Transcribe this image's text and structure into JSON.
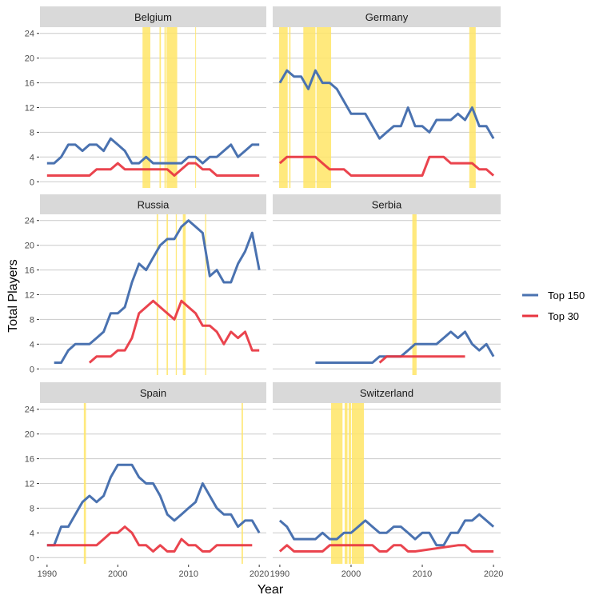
{
  "chart_data": {
    "type": "line",
    "xlabel": "Year",
    "ylabel": "Total Players",
    "xlim": [
      1989,
      2021
    ],
    "ylim": [
      -1,
      25
    ],
    "x_ticks": [
      1990,
      2000,
      2010,
      2020
    ],
    "y_ticks": [
      0,
      4,
      8,
      12,
      16,
      20,
      24
    ],
    "grid": true,
    "legend": {
      "placement": "right",
      "entries": [
        {
          "name": "Top 150",
          "color": "#4a72b0"
        },
        {
          "name": "Top 30",
          "color": "#e8343f"
        }
      ]
    },
    "highlight_color": "#ffe566",
    "panels": [
      {
        "title": "Belgium",
        "series": [
          {
            "name": "Top 150",
            "x": [
              1990,
              1991,
              1992,
              1993,
              1994,
              1995,
              1996,
              1997,
              1998,
              1999,
              2000,
              2001,
              2002,
              2003,
              2004,
              2005,
              2006,
              2007,
              2008,
              2009,
              2010,
              2011,
              2012,
              2013,
              2014,
              2015,
              2016,
              2017,
              2018,
              2019,
              2020
            ],
            "values": [
              3,
              3,
              4,
              6,
              6,
              5,
              6,
              6,
              5,
              7,
              6,
              5,
              3,
              3,
              4,
              3,
              3,
              3,
              3,
              3,
              4,
              4,
              3,
              4,
              4,
              5,
              6,
              4,
              5,
              6,
              6
            ]
          },
          {
            "name": "Top 30",
            "x": [
              1990,
              1991,
              1992,
              1993,
              1994,
              1995,
              1996,
              1997,
              1998,
              1999,
              2000,
              2001,
              2002,
              2003,
              2004,
              2005,
              2006,
              2007,
              2008,
              2009,
              2010,
              2011,
              2012,
              2013,
              2014,
              2015,
              2016,
              2017,
              2018,
              2019,
              2020
            ],
            "values": [
              1,
              1,
              1,
              1,
              1,
              1,
              1,
              2,
              2,
              2,
              3,
              2,
              2,
              2,
              2,
              2,
              2,
              2,
              1,
              2,
              3,
              3,
              2,
              2,
              1,
              1,
              1,
              1,
              1,
              1,
              1
            ]
          }
        ],
        "highlights": [
          [
            2003.5,
            2004.6
          ],
          [
            2005.9,
            2006.1
          ],
          [
            2006.6,
            2006.8
          ],
          [
            2006.9,
            2008.4
          ],
          [
            2010.95,
            2011.05
          ]
        ]
      },
      {
        "title": "Germany",
        "series": [
          {
            "name": "Top 150",
            "x": [
              1990,
              1991,
              1992,
              1993,
              1994,
              1995,
              1996,
              1997,
              1998,
              1999,
              2000,
              2001,
              2002,
              2003,
              2004,
              2005,
              2006,
              2007,
              2008,
              2009,
              2010,
              2011,
              2012,
              2013,
              2014,
              2015,
              2016,
              2017,
              2018,
              2019,
              2020
            ],
            "values": [
              16,
              18,
              17,
              17,
              15,
              18,
              16,
              16,
              15,
              13,
              11,
              11,
              11,
              9,
              7,
              8,
              9,
              9,
              12,
              9,
              9,
              8,
              10,
              10,
              10,
              11,
              10,
              12,
              9,
              9,
              7
            ]
          },
          {
            "name": "Top 30",
            "x": [
              1990,
              1991,
              1992,
              1993,
              1994,
              1995,
              1996,
              1997,
              1998,
              1999,
              2000,
              2001,
              2002,
              2003,
              2004,
              2005,
              2006,
              2007,
              2008,
              2009,
              2010,
              2011,
              2012,
              2013,
              2014,
              2015,
              2016,
              2017,
              2018,
              2019,
              2020
            ],
            "values": [
              3,
              4,
              4,
              4,
              4,
              4,
              3,
              2,
              2,
              2,
              1,
              1,
              1,
              1,
              1,
              1,
              1,
              1,
              1,
              1,
              1,
              4,
              4,
              4,
              3,
              3,
              3,
              3,
              2,
              2,
              1
            ]
          }
        ],
        "highlights": [
          [
            1989.9,
            1991.1
          ],
          [
            1991.3,
            1991.5
          ],
          [
            1993.3,
            1995.0
          ],
          [
            1995.15,
            1997.2
          ],
          [
            2016.6,
            2017.5
          ]
        ]
      },
      {
        "title": "Russia",
        "series": [
          {
            "name": "Top 150",
            "x": [
              1991,
              1992,
              1993,
              1994,
              1995,
              1996,
              1997,
              1998,
              1999,
              2000,
              2001,
              2002,
              2003,
              2004,
              2005,
              2006,
              2007,
              2008,
              2009,
              2010,
              2011,
              2012,
              2013,
              2014,
              2015,
              2016,
              2017,
              2018,
              2019,
              2020
            ],
            "values": [
              1,
              1,
              3,
              4,
              4,
              4,
              5,
              6,
              9,
              9,
              10,
              14,
              17,
              16,
              18,
              20,
              21,
              21,
              23,
              24,
              23,
              22,
              15,
              16,
              14,
              14,
              17,
              19,
              22,
              16
            ]
          },
          {
            "name": "Top 30",
            "x": [
              1996,
              1997,
              1998,
              1999,
              2000,
              2001,
              2002,
              2003,
              2004,
              2005,
              2006,
              2007,
              2008,
              2009,
              2010,
              2011,
              2012,
              2013,
              2014,
              2015,
              2016,
              2017,
              2018,
              2019,
              2020
            ],
            "values": [
              1,
              2,
              2,
              2,
              3,
              3,
              5,
              9,
              10,
              11,
              10,
              9,
              8,
              11,
              10,
              9,
              7,
              7,
              6,
              4,
              6,
              5,
              6,
              3,
              3
            ]
          }
        ],
        "highlights": [
          [
            2005.5,
            2005.7
          ],
          [
            2006.9,
            2007.1
          ],
          [
            2008.2,
            2008.35
          ],
          [
            2009.2,
            2009.6
          ],
          [
            2012.35,
            2012.5
          ]
        ]
      },
      {
        "title": "Serbia",
        "series": [
          {
            "name": "Top 150",
            "x": [
              1995,
              1996,
              1997,
              1998,
              1999,
              2000,
              2001,
              2002,
              2003,
              2004,
              2005,
              2006,
              2007,
              2008,
              2009,
              2010,
              2011,
              2012,
              2013,
              2014,
              2015,
              2016,
              2017,
              2018,
              2019,
              2020
            ],
            "values": [
              1,
              1,
              1,
              1,
              1,
              1,
              1,
              1,
              1,
              2,
              2,
              2,
              2,
              3,
              4,
              4,
              4,
              4,
              5,
              6,
              5,
              6,
              4,
              3,
              4,
              2
            ]
          },
          {
            "name": "Top 30",
            "x": [
              2004,
              2005,
              2006,
              2007,
              2008,
              2009,
              2010,
              2011,
              2012,
              2013,
              2014,
              2015,
              2016
            ],
            "values": [
              1,
              2,
              2,
              2,
              2,
              2,
              2,
              2,
              2,
              2,
              2,
              2,
              2
            ]
          }
        ],
        "highlights": [
          [
            2008.6,
            2009.2
          ]
        ]
      },
      {
        "title": "Spain",
        "series": [
          {
            "name": "Top 150",
            "x": [
              1990,
              1991,
              1992,
              1993,
              1994,
              1995,
              1996,
              1997,
              1998,
              1999,
              2000,
              2001,
              2002,
              2003,
              2004,
              2005,
              2006,
              2007,
              2008,
              2009,
              2010,
              2011,
              2012,
              2013,
              2014,
              2015,
              2016,
              2017,
              2018,
              2019,
              2020
            ],
            "values": [
              2,
              2,
              5,
              5,
              7,
              9,
              10,
              9,
              10,
              13,
              15,
              15,
              15,
              13,
              12,
              12,
              10,
              7,
              6,
              7,
              8,
              9,
              12,
              10,
              8,
              7,
              7,
              5,
              6,
              6,
              4
            ]
          },
          {
            "name": "Top 30",
            "x": [
              1990,
              1991,
              1992,
              1993,
              1994,
              1995,
              1996,
              1997,
              1998,
              1999,
              2000,
              2001,
              2002,
              2003,
              2004,
              2005,
              2006,
              2007,
              2008,
              2009,
              2010,
              2011,
              2012,
              2013,
              2014,
              2015,
              2016,
              2017,
              2018,
              2019
            ],
            "values": [
              2,
              2,
              2,
              2,
              2,
              2,
              2,
              2,
              3,
              4,
              4,
              5,
              4,
              2,
              2,
              1,
              2,
              1,
              1,
              3,
              2,
              2,
              1,
              1,
              2,
              2,
              2,
              2,
              2,
              2
            ]
          }
        ],
        "highlights": [
          [
            1995.2,
            1995.5
          ],
          [
            2017.5,
            2017.7
          ]
        ]
      },
      {
        "title": "Switzerland",
        "series": [
          {
            "name": "Top 150",
            "x": [
              1990,
              1991,
              1992,
              1993,
              1994,
              1995,
              1996,
              1997,
              1998,
              1999,
              2000,
              2001,
              2002,
              2003,
              2004,
              2005,
              2006,
              2007,
              2008,
              2009,
              2010,
              2011,
              2012,
              2013,
              2014,
              2015,
              2016,
              2017,
              2018,
              2019,
              2020
            ],
            "values": [
              6,
              5,
              3,
              3,
              3,
              3,
              4,
              3,
              3,
              4,
              4,
              5,
              6,
              5,
              4,
              4,
              5,
              5,
              4,
              3,
              4,
              4,
              2,
              2,
              4,
              4,
              6,
              6,
              7,
              6,
              5
            ]
          },
          {
            "name": "Top 30",
            "x": [
              1990,
              1991,
              1992,
              1993,
              1994,
              1995,
              1996,
              1997,
              1998,
              1999,
              2000,
              2001,
              2002,
              2003,
              2004,
              2005,
              2006,
              2007,
              2008,
              2009,
              2015,
              2016,
              2017,
              2018,
              2019,
              2020
            ],
            "values": [
              1,
              2,
              1,
              1,
              1,
              1,
              1,
              2,
              2,
              2,
              2,
              2,
              2,
              2,
              1,
              1,
              2,
              2,
              1,
              1,
              2,
              2,
              1,
              1,
              1,
              1
            ]
          }
        ],
        "highlights": [
          [
            1997.2,
            1998.8
          ],
          [
            1999.1,
            1999.5
          ],
          [
            1999.65,
            2000.0
          ],
          [
            2000.1,
            2001.8
          ]
        ]
      }
    ]
  }
}
